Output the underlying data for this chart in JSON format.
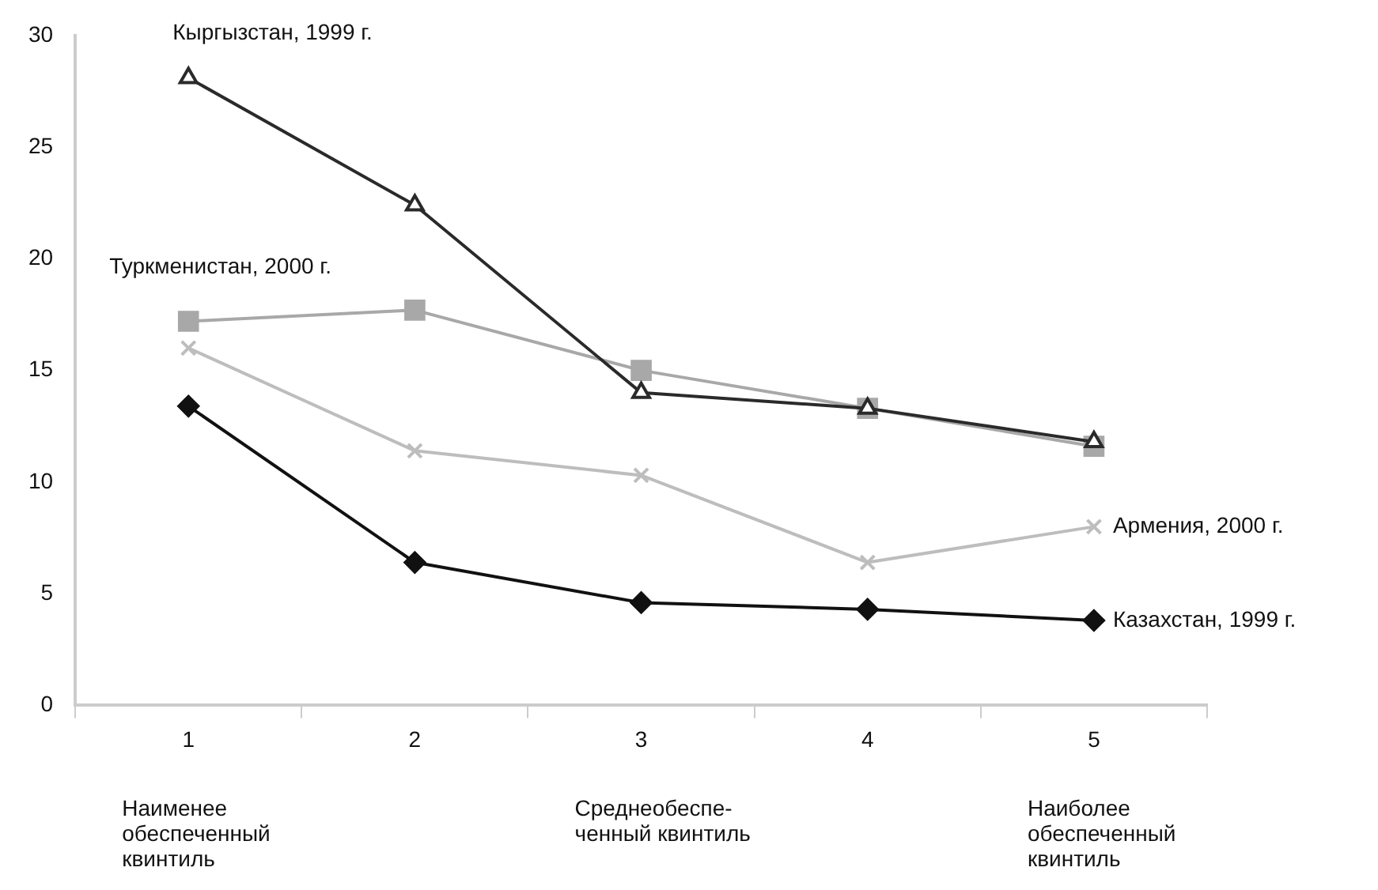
{
  "chart_data": {
    "type": "line",
    "categories": [
      "1",
      "2",
      "3",
      "4",
      "5"
    ],
    "series": [
      {
        "name": "Кыргызстан, 1999 г.",
        "color": "#2a2a2a",
        "marker": "triangle",
        "values": [
          28.1,
          22.4,
          14.0,
          13.3,
          11.8
        ]
      },
      {
        "name": "Туркменистан, 2000 г.",
        "color": "#a8a8a8",
        "marker": "square",
        "values": [
          17.2,
          17.7,
          15.0,
          13.3,
          11.6
        ]
      },
      {
        "name": "Армения, 2000 г.",
        "color": "#bdbdbd",
        "marker": "cross",
        "values": [
          16.0,
          11.4,
          10.3,
          6.4,
          8.0
        ]
      },
      {
        "name": "Казахстан, 1999 г.",
        "color": "#111111",
        "marker": "diamond",
        "values": [
          13.4,
          6.4,
          4.6,
          4.3,
          3.8
        ]
      }
    ],
    "ylim": [
      0,
      30
    ],
    "yticks": [
      0,
      5,
      10,
      15,
      20,
      25,
      30
    ],
    "grid": false,
    "legend": false,
    "annotations": [
      "Наименее\nобеспеченный\nквинтиль",
      "Среднеобеспе-\nченный квинтиль",
      "Наиболее\nобеспеченный\nквинтиль"
    ]
  }
}
